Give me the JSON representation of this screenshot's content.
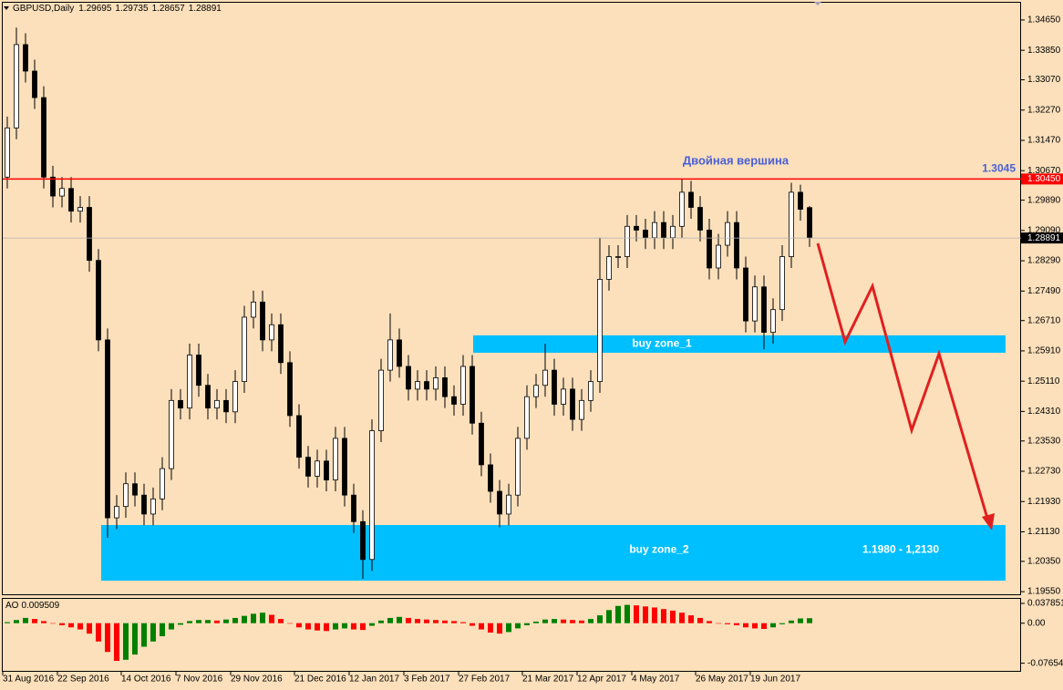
{
  "chart_data": [
    {
      "type": "candlestick",
      "title": "GBPUSD,Daily",
      "categories": [
        "31 Aug 2016",
        null,
        null,
        null,
        null,
        null,
        "22 Sep 2016",
        null,
        null,
        null,
        null,
        null,
        null,
        "14 Oct 2016",
        null,
        null,
        null,
        null,
        null,
        "7 Nov 2016",
        null,
        null,
        null,
        null,
        null,
        "29 Nov 2016",
        null,
        null,
        null,
        null,
        null,
        null,
        "21 Dec 2016",
        null,
        null,
        null,
        null,
        null,
        "12 Jan 2017",
        null,
        null,
        null,
        null,
        null,
        "3 Feb 2017",
        null,
        null,
        null,
        null,
        null,
        "27 Feb 2017",
        null,
        null,
        null,
        null,
        null,
        null,
        "21 Mar 2017",
        null,
        null,
        null,
        null,
        null,
        "12 Apr 2017",
        null,
        null,
        null,
        null,
        null,
        "4 May 2017",
        null,
        null,
        null,
        null,
        null,
        null,
        "26 May 2017",
        null,
        null,
        null,
        null,
        null,
        "19 Jun 2017",
        null,
        null,
        null,
        null,
        null,
        null
      ],
      "open": [
        1.305,
        1.318,
        1.34,
        1.333,
        1.326,
        1.305,
        1.3,
        1.302,
        1.296,
        1.297,
        1.283,
        1.262,
        1.215,
        1.218,
        1.224,
        1.221,
        1.216,
        1.22,
        1.228,
        1.246,
        1.244,
        1.258,
        1.25,
        1.244,
        1.246,
        1.243,
        1.251,
        1.268,
        1.272,
        1.262,
        1.266,
        1.256,
        1.242,
        1.231,
        1.226,
        1.23,
        1.225,
        1.236,
        1.221,
        1.214,
        1.204,
        1.238,
        1.254,
        1.262,
        1.255,
        1.249,
        1.251,
        1.249,
        1.252,
        1.247,
        1.245,
        1.255,
        1.24,
        1.229,
        1.222,
        1.216,
        1.221,
        1.236,
        1.247,
        1.25,
        1.254,
        1.245,
        1.249,
        1.241,
        1.246,
        1.251,
        1.278,
        1.284,
        1.284,
        1.292,
        1.291,
        1.289,
        1.293,
        1.289,
        1.292,
        1.301,
        1.297,
        1.291,
        1.281,
        1.287,
        1.293,
        1.281,
        1.267,
        1.276,
        1.264,
        1.27,
        1.284,
        1.301,
        1.29695
      ],
      "high": [
        1.321,
        1.3445,
        1.343,
        1.336,
        1.329,
        1.308,
        1.305,
        1.305,
        1.3,
        1.3,
        1.286,
        1.265,
        1.221,
        1.227,
        1.227,
        1.224,
        1.223,
        1.231,
        1.249,
        1.249,
        1.261,
        1.261,
        1.253,
        1.249,
        1.249,
        1.254,
        1.271,
        1.275,
        1.275,
        1.269,
        1.269,
        1.259,
        1.245,
        1.234,
        1.233,
        1.233,
        1.239,
        1.239,
        1.224,
        1.217,
        1.241,
        1.257,
        1.269,
        1.265,
        1.258,
        1.254,
        1.254,
        1.255,
        1.255,
        1.25,
        1.258,
        1.258,
        1.243,
        1.232,
        1.225,
        1.224,
        1.239,
        1.25,
        1.253,
        1.261,
        1.257,
        1.252,
        1.252,
        1.249,
        1.254,
        1.289,
        1.287,
        1.287,
        1.295,
        1.295,
        1.294,
        1.296,
        1.296,
        1.295,
        1.3045,
        1.304,
        1.3,
        1.294,
        1.29,
        1.296,
        1.296,
        1.284,
        1.279,
        1.279,
        1.273,
        1.287,
        1.3035,
        1.303,
        1.29735
      ],
      "low": [
        1.302,
        1.315,
        1.33,
        1.323,
        1.302,
        1.297,
        1.297,
        1.293,
        1.293,
        1.28,
        1.259,
        1.2097,
        1.212,
        1.215,
        1.218,
        1.213,
        1.213,
        1.217,
        1.225,
        1.241,
        1.241,
        1.247,
        1.241,
        1.241,
        1.24,
        1.24,
        1.248,
        1.265,
        1.259,
        1.259,
        1.253,
        1.239,
        1.228,
        1.223,
        1.223,
        1.222,
        1.222,
        1.218,
        1.211,
        1.1989,
        1.201,
        1.235,
        1.251,
        1.252,
        1.246,
        1.246,
        1.246,
        1.246,
        1.244,
        1.242,
        1.242,
        1.237,
        1.226,
        1.219,
        1.2125,
        1.213,
        1.218,
        1.233,
        1.244,
        1.247,
        1.242,
        1.242,
        1.238,
        1.238,
        1.243,
        1.248,
        1.275,
        1.281,
        1.281,
        1.288,
        1.286,
        1.286,
        1.286,
        1.286,
        1.289,
        1.294,
        1.288,
        1.278,
        1.278,
        1.284,
        1.278,
        1.264,
        1.264,
        1.2595,
        1.261,
        1.267,
        1.281,
        1.2935,
        1.28657
      ],
      "close": [
        1.318,
        1.34,
        1.333,
        1.326,
        1.305,
        1.3,
        1.302,
        1.296,
        1.297,
        1.283,
        1.262,
        1.215,
        1.218,
        1.224,
        1.221,
        1.216,
        1.22,
        1.228,
        1.246,
        1.244,
        1.258,
        1.25,
        1.244,
        1.246,
        1.243,
        1.251,
        1.268,
        1.272,
        1.262,
        1.266,
        1.256,
        1.242,
        1.231,
        1.226,
        1.23,
        1.225,
        1.236,
        1.221,
        1.214,
        1.204,
        1.238,
        1.254,
        1.262,
        1.255,
        1.249,
        1.251,
        1.249,
        1.252,
        1.247,
        1.245,
        1.255,
        1.24,
        1.229,
        1.222,
        1.216,
        1.221,
        1.236,
        1.247,
        1.25,
        1.254,
        1.245,
        1.249,
        1.241,
        1.246,
        1.251,
        1.278,
        1.284,
        1.284,
        1.292,
        1.291,
        1.289,
        1.293,
        1.289,
        1.292,
        1.301,
        1.297,
        1.291,
        1.281,
        1.287,
        1.293,
        1.281,
        1.267,
        1.276,
        1.264,
        1.27,
        1.284,
        1.301,
        1.2965,
        1.28891
      ],
      "ylim": [
        1.1948,
        1.3513
      ],
      "yticks": [
        {
          "value": 1.3465,
          "label": "1.34650"
        },
        {
          "value": 1.3385,
          "label": "1.33850"
        },
        {
          "value": 1.3307,
          "label": "1.33070"
        },
        {
          "value": 1.3227,
          "label": "1.32270"
        },
        {
          "value": 1.3147,
          "label": "1.31470"
        },
        {
          "value": 1.3067,
          "label": "1.30670"
        },
        {
          "value": 1.2989,
          "label": "1.29890"
        },
        {
          "value": 1.2909,
          "label": "1.29090"
        },
        {
          "value": 1.2829,
          "label": "1.28290"
        },
        {
          "value": 1.2749,
          "label": "1.27490"
        },
        {
          "value": 1.2671,
          "label": "1.26710"
        },
        {
          "value": 1.2591,
          "label": "1.25910"
        },
        {
          "value": 1.2511,
          "label": "1.25110"
        },
        {
          "value": 1.2431,
          "label": "1.24310"
        },
        {
          "value": 1.2353,
          "label": "1.23530"
        },
        {
          "value": 1.2273,
          "label": "1.22730"
        },
        {
          "value": 1.2193,
          "label": "1.21930"
        },
        {
          "value": 1.2113,
          "label": "1.21130"
        },
        {
          "value": 1.2035,
          "label": "1.20350"
        },
        {
          "value": 1.1955,
          "label": "1.19550"
        }
      ],
      "color_up": "#ffffff",
      "color_down": "#000000",
      "level": {
        "value": 1.3045,
        "label": "1.3045",
        "axis_label": "1.30450",
        "color": "#ff0000"
      },
      "annotation": "Двойная вершина",
      "zone_color": "#00bfff",
      "zones": [
        {
          "label": "buy zone_1",
          "range": [
            1.2586,
            1.2632
          ]
        },
        {
          "label": "buy zone_2",
          "range": [
            1.1984,
            1.2131
          ],
          "range_label": "1.1980 - 1,2130"
        }
      ]
    },
    {
      "type": "bar",
      "series": [
        {
          "name": "AO",
          "values": [
            0.002,
            0.006,
            0.01,
            0.008,
            0.004,
            0.0,
            -0.004,
            -0.008,
            -0.012,
            -0.02,
            -0.035,
            -0.055,
            -0.072,
            -0.07,
            -0.06,
            -0.045,
            -0.035,
            -0.025,
            -0.012,
            -0.003,
            0.004,
            0.006,
            0.006,
            0.005,
            0.007,
            0.01,
            0.014,
            0.018,
            0.02,
            0.016,
            0.008,
            0.0,
            -0.008,
            -0.012,
            -0.014,
            -0.015,
            -0.012,
            -0.01,
            -0.012,
            -0.013,
            -0.005,
            0.005,
            0.01,
            0.012,
            0.01,
            0.008,
            0.007,
            0.006,
            0.005,
            0.004,
            0.002,
            -0.005,
            -0.012,
            -0.018,
            -0.02,
            -0.017,
            -0.01,
            -0.004,
            0.003,
            0.007,
            0.008,
            0.007,
            0.006,
            0.005,
            0.008,
            0.015,
            0.025,
            0.033,
            0.035,
            0.034,
            0.032,
            0.03,
            0.027,
            0.024,
            0.02,
            0.015,
            0.01,
            0.004,
            0.0,
            -0.002,
            -0.004,
            -0.008,
            -0.01,
            -0.011,
            -0.008,
            -0.002,
            0.005,
            0.009,
            0.009509
          ]
        }
      ],
      "ylim": [
        -0.0929,
        0.0465
      ],
      "yticks": [
        0.037851,
        {
          "value": 0,
          "label": "0.00"
        },
        -0.076546
      ],
      "up_color": "#008000",
      "down_color": "#ff0000"
    }
  ]
}
